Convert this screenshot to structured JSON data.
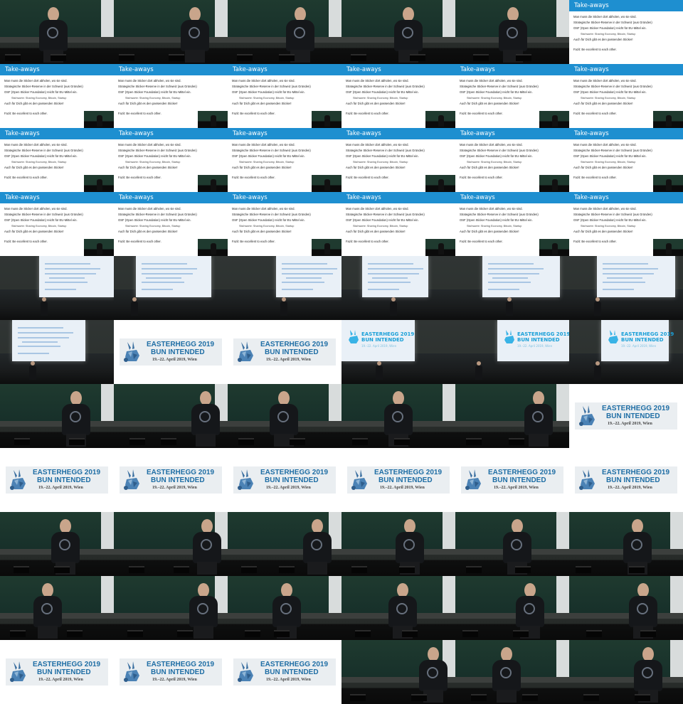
{
  "slide": {
    "title": "Take-aways",
    "bullets": [
      {
        "text": "Man muss die Sticker dort abholen, wo sie sind.",
        "level": 1
      },
      {
        "text": "Strategische Sticker-Reserve in der Schweiz (aus Gründen)",
        "level": 1
      },
      {
        "text": "OSF (Open Sticker Foundation) reicht für EU-Mittel ein.",
        "level": 1
      },
      {
        "text": "Stichworte: Sharing Economy, Bitcoin, Startup",
        "level": 2
      },
      {
        "text": "Auch für Dich gibt es den passenden Sticker!",
        "level": 1
      },
      {
        "text": "Fazit: Be excellent to each other.",
        "level": 1,
        "gap": true
      }
    ]
  },
  "title_card": {
    "line1": "EASTERHEGG 2019",
    "line2": "BUN INTENDED",
    "line3": "19.–22. April 2019, Wien"
  },
  "projected_slide": {
    "title": "EASTERHEGG 2019",
    "subtitle": "BUN INTENDED",
    "date": "19.–22. April 2019, Wien"
  },
  "colors": {
    "slide_bar": "#1e8fd0",
    "title_blue": "#1f6ea5",
    "room_green": "#1f3a2f"
  },
  "grid": {
    "columns": 6,
    "rows": 11,
    "tiles": [
      "speaker",
      "speaker",
      "speaker",
      "speaker",
      "speaker",
      "slide-nopip",
      "slide",
      "slide",
      "slide",
      "slide",
      "slide",
      "slide",
      "slide",
      "slide",
      "slide",
      "slide",
      "slide",
      "slide",
      "slide",
      "slide",
      "slide",
      "slide",
      "slide",
      "slide",
      "room-text",
      "room-text",
      "room-text",
      "room-text",
      "room-text",
      "room-text",
      "room-text",
      "title",
      "title",
      "room-logo",
      "room-logo",
      "room-logo",
      "speaker",
      "speaker",
      "speaker",
      "speaker",
      "speaker",
      "title",
      "title",
      "title",
      "title",
      "title",
      "title",
      "title",
      "speaker",
      "speaker",
      "speaker",
      "speaker",
      "speaker",
      "speaker",
      "speaker",
      "speaker",
      "speaker",
      "speaker",
      "speaker",
      "speaker",
      "title",
      "title",
      "title",
      "speaker",
      "speaker",
      "speaker"
    ]
  }
}
